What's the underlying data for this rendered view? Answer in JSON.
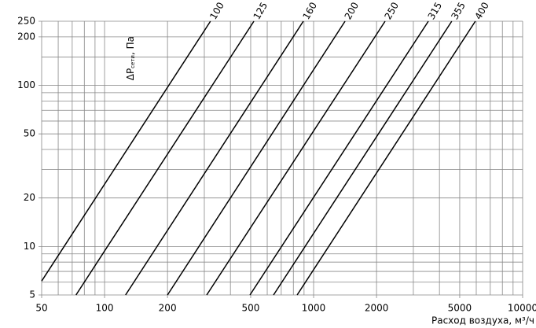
{
  "chart_data": {
    "type": "line",
    "xscale": "log",
    "yscale": "log",
    "grid": true,
    "ylabel": "ΔP",
    "ylabel_sub": "сети",
    "ylabel_unit": ", Па",
    "xlabel": "Расход воздуха, м³/ч",
    "xlim": [
      50,
      10000
    ],
    "ylim": [
      5,
      250
    ],
    "xticks": [
      50,
      100,
      200,
      500,
      1000,
      2000,
      5000,
      10000
    ],
    "xminor": [
      60,
      70,
      80,
      90,
      300,
      400,
      600,
      700,
      800,
      900,
      3000,
      4000,
      6000,
      7000,
      8000,
      9000
    ],
    "yticks": [
      5,
      10,
      20,
      50,
      100,
      200,
      250
    ],
    "yminor": [
      6,
      7,
      8,
      9,
      30,
      40,
      60,
      70,
      80,
      90,
      150
    ],
    "series": [
      {
        "name": "100",
        "color": "#000000",
        "x": [
          50,
          321
        ],
        "values": [
          6.1,
          250
        ]
      },
      {
        "name": "125",
        "color": "#000000",
        "x": [
          73,
          518
        ],
        "values": [
          5,
          250
        ]
      },
      {
        "name": "160",
        "color": "#000000",
        "x": [
          126,
          893
        ],
        "values": [
          5,
          250
        ]
      },
      {
        "name": "200",
        "color": "#000000",
        "x": [
          200,
          1414
        ],
        "values": [
          5,
          250
        ]
      },
      {
        "name": "250",
        "color": "#000000",
        "x": [
          308,
          2198
        ],
        "values": [
          5,
          250
        ]
      },
      {
        "name": "315",
        "color": "#000000",
        "x": [
          496,
          3540
        ],
        "values": [
          5,
          250
        ]
      },
      {
        "name": "355",
        "color": "#000000",
        "x": [
          643,
          4580
        ],
        "values": [
          5,
          250
        ]
      },
      {
        "name": "400",
        "color": "#000000",
        "x": [
          834,
          5940
        ],
        "values": [
          5,
          250
        ]
      }
    ]
  }
}
